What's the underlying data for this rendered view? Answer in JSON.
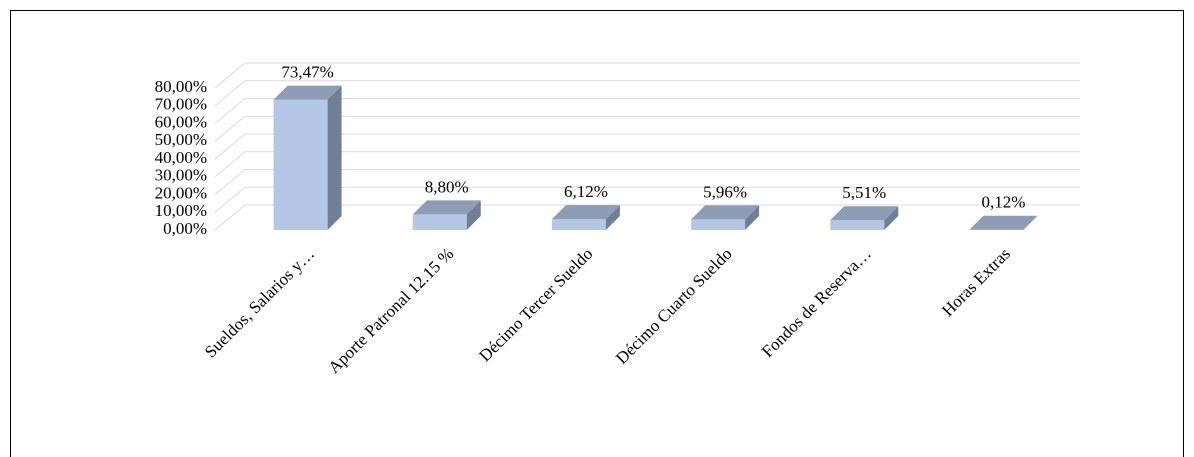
{
  "chart_data": {
    "type": "bar3d",
    "categories": [
      "Sueldos, Salarios y…",
      "Aporte Patronal 12.15 %",
      "Décimo Tercer Sueldo",
      "Décimo Cuarto Sueldo",
      "Fondos de Reserva…",
      "Horas Extras"
    ],
    "values": [
      73.47,
      8.8,
      6.12,
      5.96,
      5.51,
      0.12
    ],
    "value_labels": [
      "73,47%",
      "8,80%",
      "6,12%",
      "5,96%",
      "5,51%",
      "0,12%"
    ],
    "color": "#b4c7e7",
    "ylim": [
      0,
      80
    ],
    "yticks": [
      {
        "value": 0,
        "label": "0,00%"
      },
      {
        "value": 10,
        "label": "10,00%"
      },
      {
        "value": 20,
        "label": "20,00%"
      },
      {
        "value": 30,
        "label": "30,00%"
      },
      {
        "value": 40,
        "label": "40,00%"
      },
      {
        "value": 50,
        "label": "50,00%"
      },
      {
        "value": 60,
        "label": "60,00%"
      },
      {
        "value": 70,
        "label": "70,00%"
      },
      {
        "value": 80,
        "label": "80,00%"
      }
    ],
    "grid": true
  }
}
